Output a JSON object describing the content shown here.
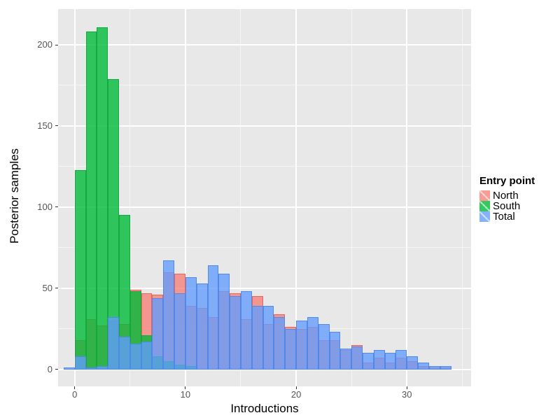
{
  "chart_data": {
    "type": "bar",
    "variant": "overlaid-histogram",
    "title": "",
    "xlabel": "Introductions",
    "ylabel": "Posterior samples",
    "bin_width": 1,
    "first_bin_start": -1,
    "xlim": [
      -1.5,
      35.8
    ],
    "ylim": [
      -10.5,
      222
    ],
    "xticks": {
      "values": [
        0,
        10,
        20,
        30
      ],
      "labels": [
        "0",
        "10",
        "20",
        "30"
      ],
      "minor": [
        5,
        15,
        25,
        35
      ]
    },
    "yticks": {
      "values": [
        0,
        50,
        100,
        150,
        200
      ],
      "labels": [
        "0",
        "50",
        "100",
        "150",
        "200"
      ],
      "minor": [
        25,
        75,
        125,
        175
      ]
    },
    "panel_bg": "#E8E8E8",
    "grid_color": "#FFFFFF",
    "legend": {
      "title": "Entry point",
      "position": "right"
    },
    "series": [
      {
        "name": "North",
        "fill": "#F8766D",
        "edge": "#F1594F",
        "alpha": 0.72,
        "values": [
          0,
          18,
          31,
          27,
          30,
          28,
          49,
          47,
          46,
          60,
          59,
          39,
          38,
          32,
          48,
          47,
          31,
          45,
          28,
          34,
          26,
          25,
          26,
          18,
          18,
          12,
          15,
          4,
          7,
          4,
          7,
          5,
          2,
          1,
          1
        ]
      },
      {
        "name": "South",
        "fill": "#00BA38",
        "edge": "#0FA83A",
        "alpha": 0.8,
        "values": [
          0,
          123,
          208,
          211,
          179,
          95,
          48,
          21,
          8,
          5,
          3,
          2,
          0,
          0,
          0,
          0,
          0,
          0,
          0,
          0,
          0,
          0,
          0,
          0,
          0,
          0,
          0,
          0,
          0,
          0,
          0,
          0,
          0,
          0,
          0
        ]
      },
      {
        "name": "Total",
        "fill": "#619CFF",
        "edge": "#4C86E8",
        "alpha": 0.78,
        "values": [
          1,
          8,
          1,
          2,
          32,
          20,
          16,
          17,
          44,
          67,
          47,
          57,
          53,
          64,
          59,
          45,
          48,
          39,
          39,
          32,
          25,
          30,
          32,
          28,
          23,
          13,
          14,
          10,
          12,
          10,
          12,
          8,
          4,
          2,
          2
        ]
      }
    ]
  }
}
